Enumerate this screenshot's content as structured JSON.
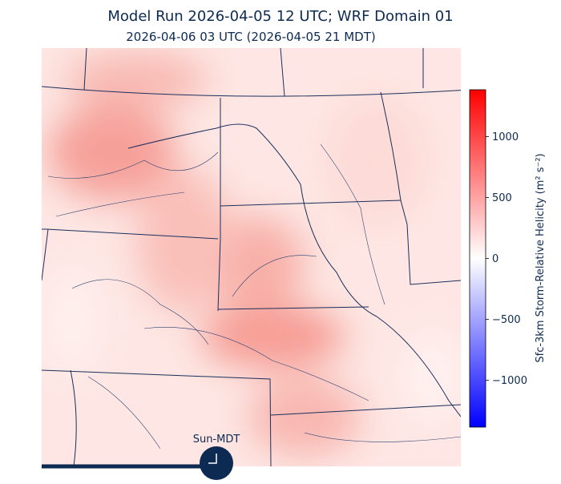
{
  "title": "Model Run 2026-04-05 12 UTC; WRF Domain 01",
  "subtitle": "2026-04-06 03 UTC  (2026-04-05 21 MDT)",
  "colorbar": {
    "label": "Sfc-3km Storm-Relative Helicity (m² s⁻²)",
    "lim": [
      -1385,
      1385
    ],
    "ticks": [
      {
        "value": -1000,
        "label": "−1000"
      },
      {
        "value": -500,
        "label": "−500"
      },
      0,
      500,
      1000
    ]
  },
  "clock": {
    "label": "Sun-MDT"
  }
}
